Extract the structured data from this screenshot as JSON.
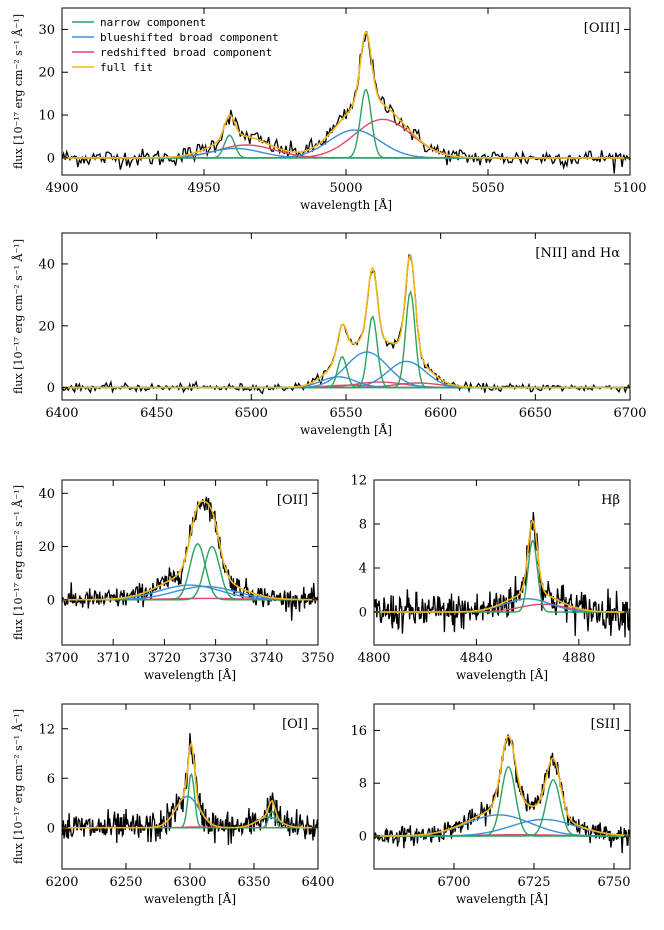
{
  "colors": {
    "narrow": "#2ca25f",
    "blue": "#3a8fd8",
    "red": "#e0486a",
    "fit": "#f2b517",
    "data": "#000000"
  },
  "chart_data": [
    {
      "type": "line",
      "title": "[OIII]",
      "xlabel": "wavelength [Å]",
      "ylabel": "flux [10⁻¹⁷ erg cm⁻² s⁻¹ Å⁻¹]",
      "xlim": [
        4900,
        5100
      ],
      "ylim": [
        -4,
        35
      ],
      "xticks": [
        4900,
        4950,
        5000,
        5050,
        5100
      ],
      "yticks": [
        0,
        10,
        20,
        30
      ],
      "noise": 1.3,
      "legend": {
        "position": "top-left",
        "entries": [
          "narrow component",
          "blueshifted broad component",
          "redshifted broad component",
          "full fit"
        ]
      },
      "components": {
        "narrow": [
          [
            4959,
            5.3,
            1.8
          ],
          [
            5007,
            16,
            1.9
          ]
        ],
        "blue": [
          [
            4961,
            2.2,
            9
          ],
          [
            5003,
            6.5,
            9
          ]
        ],
        "red": [
          [
            4965,
            3.0,
            10
          ],
          [
            5013,
            9.0,
            10
          ]
        ]
      }
    },
    {
      "type": "line",
      "title": "[NII] and Hα",
      "xlabel": "wavelength [Å]",
      "ylabel": "flux [10⁻¹⁷ erg cm⁻² s⁻¹ Å⁻¹]",
      "xlim": [
        6400,
        6700
      ],
      "ylim": [
        -4,
        50
      ],
      "xticks": [
        6400,
        6450,
        6500,
        6550,
        6600,
        6650,
        6700
      ],
      "yticks": [
        0,
        20,
        40
      ],
      "noise": 0.8,
      "components": {
        "narrow": [
          [
            6548,
            10,
            2.4
          ],
          [
            6564,
            23,
            2.5
          ],
          [
            6584,
            31,
            2.5
          ]
        ],
        "blue": [
          [
            6546,
            3.5,
            9
          ],
          [
            6561,
            11.5,
            11
          ],
          [
            6582,
            8.5,
            10
          ]
        ],
        "red": [
          [
            6552,
            0.8,
            12
          ],
          [
            6568,
            1.8,
            13
          ],
          [
            6588,
            1.5,
            12
          ]
        ]
      }
    },
    {
      "type": "line",
      "title": "[OII]",
      "xlabel": "wavelength [Å]",
      "ylabel": "flux [10⁻¹⁷ erg cm⁻² s⁻¹ Å⁻¹]",
      "xlim": [
        3700,
        3750
      ],
      "ylim": [
        -17,
        45
      ],
      "xticks": [
        3700,
        3710,
        3720,
        3730,
        3740,
        3750
      ],
      "yticks": [
        0,
        20,
        40
      ],
      "noise": 2.5,
      "components": {
        "narrow": [
          [
            3726.5,
            21,
            1.5
          ],
          [
            3729.3,
            20,
            1.5
          ]
        ],
        "blue": [
          [
            3725,
            5.5,
            6
          ],
          [
            3728,
            5.0,
            6
          ]
        ],
        "red": [
          [
            3728,
            0.5,
            8
          ]
        ]
      }
    },
    {
      "type": "line",
      "title": "Hβ",
      "xlabel": "wavelength [Å]",
      "ylabel": "",
      "xlim": [
        4800,
        4900
      ],
      "ylim": [
        -3,
        12
      ],
      "xticks": [
        4800,
        4840,
        4880
      ],
      "yticks": [
        0,
        4,
        8,
        12
      ],
      "noise": 1.1,
      "components": {
        "narrow": [
          [
            4862,
            6.5,
            1.8
          ]
        ],
        "blue": [
          [
            4860,
            1.2,
            9
          ]
        ],
        "red": [
          [
            4866,
            0.7,
            9
          ]
        ]
      }
    },
    {
      "type": "line",
      "title": "[OI]",
      "xlabel": "wavelength [Å]",
      "ylabel": "flux [10⁻¹⁷ erg cm⁻² s⁻¹ Å⁻¹]",
      "xlim": [
        6200,
        6400
      ],
      "ylim": [
        -5,
        15
      ],
      "xticks": [
        6200,
        6250,
        6300,
        6350,
        6400
      ],
      "yticks": [
        0,
        6,
        12
      ],
      "noise": 1.2,
      "components": {
        "narrow": [
          [
            6301,
            6.5,
            2.5
          ],
          [
            6364,
            2.0,
            2.5
          ]
        ],
        "blue": [
          [
            6298,
            3.8,
            9
          ],
          [
            6361,
            1.3,
            9
          ]
        ],
        "red": [
          [
            6305,
            0.1,
            10
          ]
        ]
      }
    },
    {
      "type": "line",
      "title": "[SII]",
      "xlabel": "wavelength [Å]",
      "ylabel": "",
      "xlim": [
        6675,
        6755
      ],
      "ylim": [
        -5,
        20
      ],
      "xticks": [
        6700,
        6725,
        6750
      ],
      "yticks": [
        0,
        8,
        16
      ],
      "noise": 0.9,
      "components": {
        "narrow": [
          [
            6717,
            10.5,
            2.2
          ],
          [
            6731,
            8.5,
            2.2
          ]
        ],
        "blue": [
          [
            6714,
            3.2,
            10
          ],
          [
            6728,
            2.5,
            10
          ]
        ],
        "red": [
          [
            6720,
            0.2,
            12
          ]
        ]
      }
    }
  ]
}
